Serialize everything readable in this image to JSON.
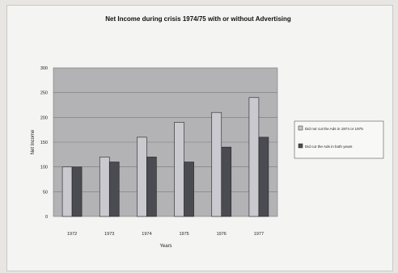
{
  "chart_data": {
    "type": "bar",
    "title": "Net Income during crisis 1974/75 with or without Advertising",
    "xlabel": "Years",
    "ylabel": "Net Income",
    "ylim": [
      0,
      300
    ],
    "yticks": [
      "0",
      "50",
      "100",
      "150",
      "200",
      "250",
      "300"
    ],
    "categories": [
      "1972",
      "1973",
      "1974",
      "1975",
      "1976",
      "1977"
    ],
    "series": [
      {
        "name": "Did not cut the Ads in 1974 or 1975",
        "values": [
          100,
          120,
          160,
          190,
          210,
          240
        ],
        "color": "#c9c9cf"
      },
      {
        "name": "Did cut the Ads in both years",
        "values": [
          100,
          110,
          120,
          110,
          140,
          160
        ],
        "color": "#4b4b52"
      }
    ],
    "grid": true,
    "legend": "right"
  }
}
